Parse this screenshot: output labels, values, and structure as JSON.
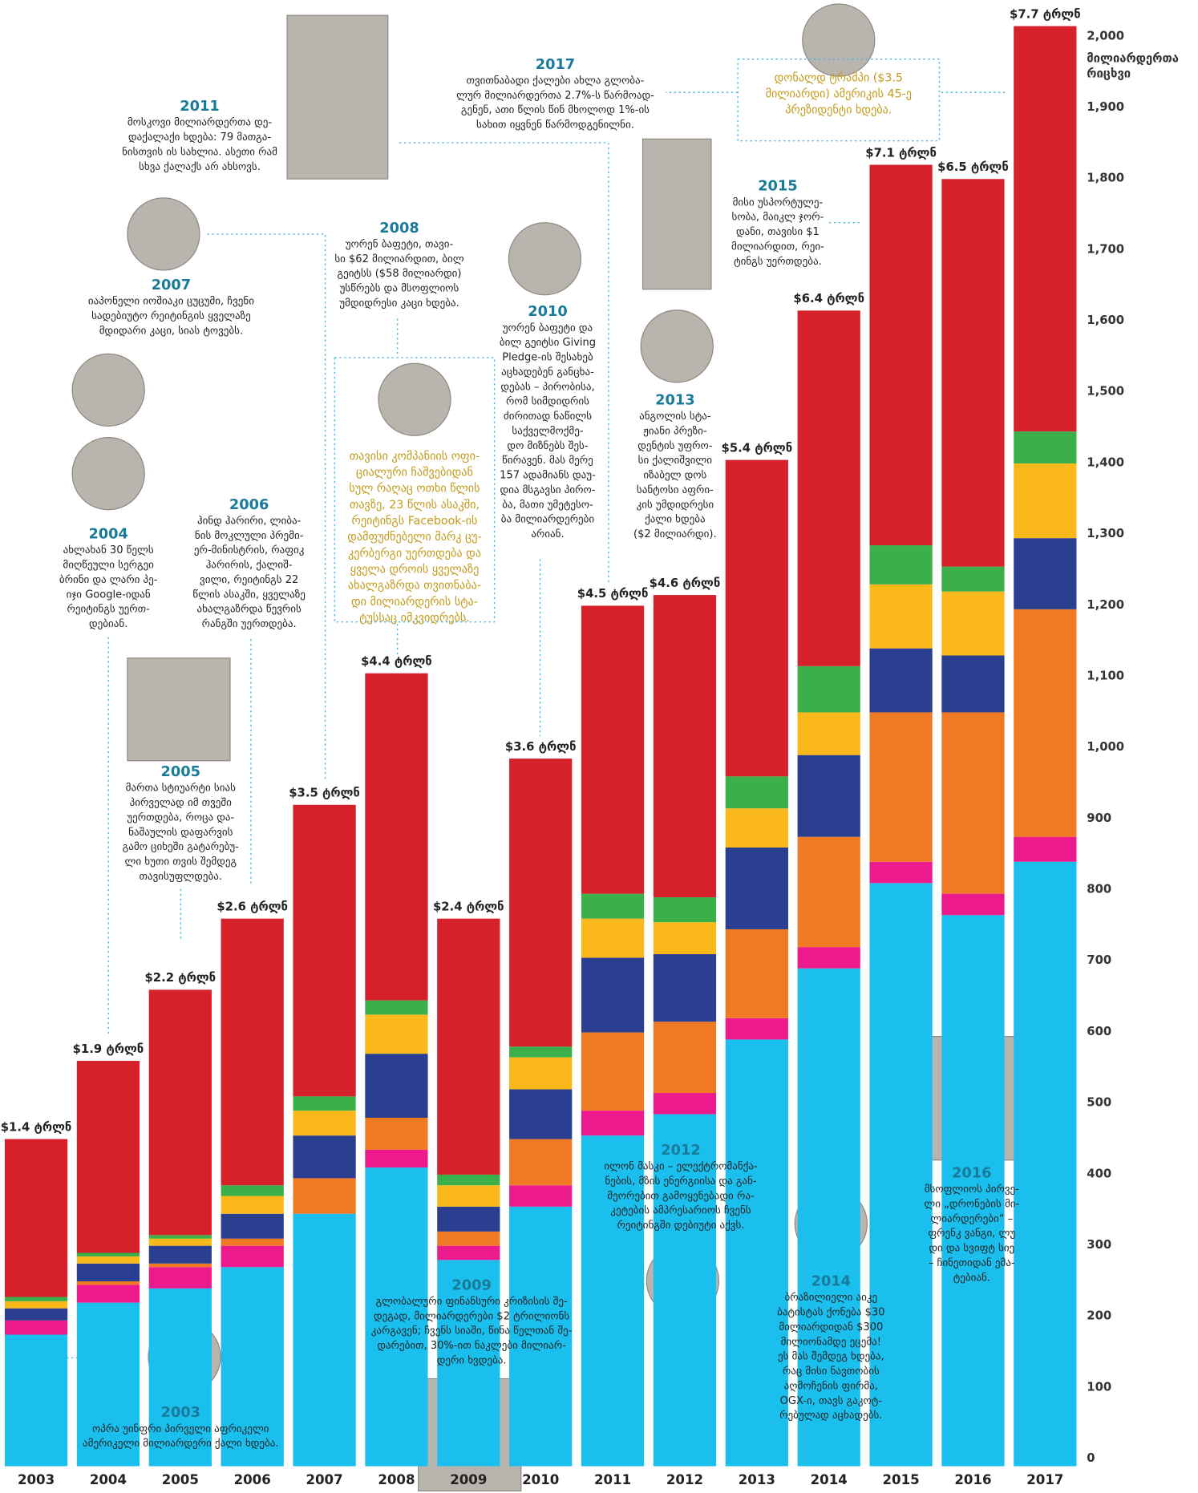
{
  "chart_data": {
    "type": "stacked-bar",
    "y_label_lines": [
      "მილიარდერთა",
      "რიცხვი"
    ],
    "categories": [
      "2003",
      "2004",
      "2005",
      "2006",
      "2007",
      "2008",
      "2009",
      "2010",
      "2011",
      "2012",
      "2013",
      "2014",
      "2015",
      "2016",
      "2017"
    ],
    "total_labels": [
      "$1.4 ტრლნ",
      "$1.9 ტრლნ",
      "$2.2 ტრლნ",
      "$2.6 ტრლნ",
      "$3.5 ტრლნ",
      "$4.4 ტრლნ",
      "$2.4 ტრლნ",
      "$3.6 ტრლნ",
      "$4.5 ტრლნ",
      "$4.6 ტრლნ",
      "$5.4 ტრლნ",
      "$6.4 ტრლნ",
      "$7.1 ტრლნ",
      "$6.5 ტრლნ",
      "$7.7 ტრლნ"
    ],
    "series": [
      {
        "color": "#1bbfee",
        "values": [
          185,
          230,
          250,
          280,
          355,
          420,
          290,
          365,
          465,
          495,
          600,
          700,
          820,
          775,
          850
        ]
      },
      {
        "color": "#ec1a8c",
        "values": [
          20,
          25,
          30,
          30,
          0,
          25,
          20,
          30,
          35,
          30,
          30,
          30,
          30,
          30,
          35
        ]
      },
      {
        "color": "#f07a23",
        "values": [
          0,
          5,
          5,
          10,
          50,
          45,
          20,
          65,
          110,
          100,
          125,
          155,
          210,
          255,
          320
        ]
      },
      {
        "color": "#2a3f8f",
        "values": [
          17,
          25,
          25,
          35,
          60,
          90,
          35,
          70,
          105,
          95,
          115,
          115,
          90,
          80,
          100
        ]
      },
      {
        "color": "#fbb81a",
        "values": [
          10,
          10,
          10,
          25,
          35,
          55,
          30,
          45,
          55,
          45,
          55,
          60,
          90,
          90,
          105
        ]
      },
      {
        "color": "#3bb04a",
        "values": [
          6,
          5,
          5,
          15,
          20,
          20,
          15,
          15,
          35,
          35,
          45,
          65,
          55,
          35,
          45
        ]
      },
      {
        "color": "#d6202a",
        "values": [
          222,
          270,
          345,
          375,
          410,
          460,
          360,
          405,
          405,
          425,
          445,
          500,
          535,
          545,
          570
        ]
      }
    ],
    "ylim": [
      0,
      2000
    ],
    "yticks": [
      0,
      100,
      200,
      300,
      400,
      500,
      600,
      700,
      800,
      900,
      {
        "value": 1000,
        "label": "1,000"
      },
      {
        "value": 1100,
        "label": "1,100"
      },
      {
        "value": 1200,
        "label": "1,200"
      },
      {
        "value": 1300,
        "label": "1,300"
      },
      {
        "value": 1400,
        "label": "1,400"
      },
      {
        "value": 1500,
        "label": "1,500"
      },
      {
        "value": 1600,
        "label": "1,600"
      },
      {
        "value": 1700,
        "label": "1,700"
      },
      {
        "value": 1800,
        "label": "1,800"
      },
      {
        "value": 1900,
        "label": "1,900"
      },
      {
        "value": 2000,
        "label": "2,000"
      }
    ],
    "annotations": [
      {
        "year": "2011",
        "lines": [
          "მოსკოვი მილიარდერთა დე-",
          "დაქალაქი ხდება: 79 მათგა-",
          "ნისთვის ის სახლია. ასეთი რამ",
          "სხვა ქალაქს არ ახსოვს."
        ]
      },
      {
        "year": "2017",
        "lines": [
          "თვითნაბადი ქალები ახლა გლობა-",
          "ლურ მილიარდერთა 2.7%-ს წარმოად-",
          "გენენ, ათი წლის წინ მხოლოდ 1%-ის",
          "სახით იყვნენ წარმოდგენილნი."
        ]
      },
      {
        "year": "2008",
        "lines": [
          "უორენ ბაფეტი, თავი-",
          "სი $62 მილიარდით, ბილ",
          "გეიტსს ($58 მილიარდი)",
          "უსწრებს და მსოფლიოს",
          "უმდიდრესი კაცი ხდება."
        ]
      },
      {
        "year": "2007",
        "lines": [
          "იაპონელი იოშიაკი ცუცუმი, ჩვენი",
          "სადებიუტო რეიტინგის ყველაზე",
          "მდიდარი კაცი, სიას ტოვებს."
        ]
      },
      {
        "year": "2010",
        "lines": [
          "უორენ ბაფეტი და",
          "ბილ გეიტსი Giving",
          "Pledge-ის შესახებ",
          "აცხადებენ განცხა-",
          "დებას – პირობისა,",
          "რომ სიმდიდრის",
          "ძირითად ნაწილს",
          "საქველმოქმე-",
          "დო მიზნებს შეს-",
          "წირავენ. მას მერე",
          "157 ადამიანს დაუ-",
          "დია მსგავსი პირო-",
          "ბა, მათი უმეტესო-",
          "ბა მილიარდერები",
          "არიან."
        ]
      },
      {
        "year": "2015",
        "lines": [
          "მისი უსპორტულე-",
          "სობა, მაიკლ ჯორ-",
          "დანი, თავისი $1",
          "მილიარდით, რეი-",
          "ტინგს უერთდება."
        ]
      },
      {
        "year": "2013",
        "lines": [
          "ანგოლის სტა-",
          "ჟიანი პრეზი-",
          "დენტის უფრო-",
          "სი ქალიშვილი",
          "იზაბელ დოს",
          "სანტოსი აფრი-",
          "კის უმდიდრესი",
          "ქალი ხდება",
          "($2 მილიარდი)."
        ]
      },
      {
        "year": "2004",
        "lines": [
          "ახლახან 30 წელს",
          "მიღწეული სერგეი",
          "ბრინი და ლარი პე-",
          "იჯი Google-იდან",
          "რეიტინგს უერთ-",
          "დებიან."
        ]
      },
      {
        "year": "2006",
        "lines": [
          "ჰინდ ჰარირი, ლიბა-",
          "ნის მოკლული პრემი-",
          "ერ-მინისტრის, რაფიკ",
          "ჰარირის, ქალიშ-",
          "ვილი, რეიტინგს 22",
          "წლის ასაკში, ყველაზე",
          "ახალგაზრდა წევრის",
          "რანგში უერთდება."
        ]
      },
      {
        "year": "2005",
        "lines": [
          "მართა სტიუარტი სიას",
          "პირველად იმ თვეში",
          "უერთდება, როცა და-",
          "ნაშაულის დაფარვის",
          "გამო ციხეში გატარებუ-",
          "ლი ხუთი თვის შემდეგ",
          "თავისუფლდება."
        ]
      },
      {
        "year": "2012",
        "lines": [
          "ილონ მასკი – ელექტრომანქა-",
          "ნების, მზის ენერგიისა და გან-",
          "მეორებით გამოყენებადი რა-",
          "კეტების ამპრესარიოს ჩვენს",
          "რეიტინგში დებიუტი აქვს."
        ]
      },
      {
        "year": "2009",
        "lines": [
          "გლობალური ფინანსური კრიზისის შე-",
          "დეგად, მილიარდერები $2 ტრილიონს",
          "კარგავენ; ჩვენს სიაში, წინა წელთან შე-",
          "დარებით, 30%-ით ნაკლები მილიარ-",
          "დერი ხვდება."
        ]
      },
      {
        "year": "2003",
        "lines": [
          "ოპრა უინფრი პირველი აფრიკელი",
          "ამერიკელი მილიარდერი ქალი ხდება."
        ]
      },
      {
        "year": "2014",
        "lines": [
          "ბრაზილიელი აიკე",
          "ბატისტას ქონება $30",
          "მილიარდიდან $300",
          "მილიონამდე ეცემა!",
          "ეს მას შემდეგ ხდება,",
          "რაც მისი ნავთობის",
          "აღმოჩენის ფირმა,",
          "OGX-ი, თავს გაკოტ-",
          "რებულად აცხადებს."
        ]
      },
      {
        "year": "2016",
        "lines": [
          "მსოფლიოს პირვე-",
          "ლი „დრონების მი-",
          "ლიარდერები“ –",
          "ფრენკ ვანგი, ლუ",
          "დი და სვიფტ სიე",
          "– ჩინეთიდან ემა-",
          "ტებიან."
        ]
      }
    ],
    "callouts": [
      {
        "lines": [
          "დონალდ ტრამპი ($3.5",
          "მილიარდი) ამერიკის 45-ე",
          "პრეზიდენტი ხდება."
        ]
      },
      {
        "lines": [
          "თავისი კომპანიის ოფი-",
          "ციალური ჩაშვებიდან",
          "სულ რაღაც ოთხი წლის",
          "თავზე, 23 წლის ასაკში,",
          "რეიტინგს Facebook-ის",
          "დამფუძნებელი მარკ ცუ-",
          "კერბერგი უერთდება და",
          "ყველა დროის ყველაზე",
          "ახალგაზრდა თვითნაბა-",
          "დი მილიარდერის სტა-",
          "ტუსსაც იმკვიდრებს."
        ]
      }
    ]
  }
}
